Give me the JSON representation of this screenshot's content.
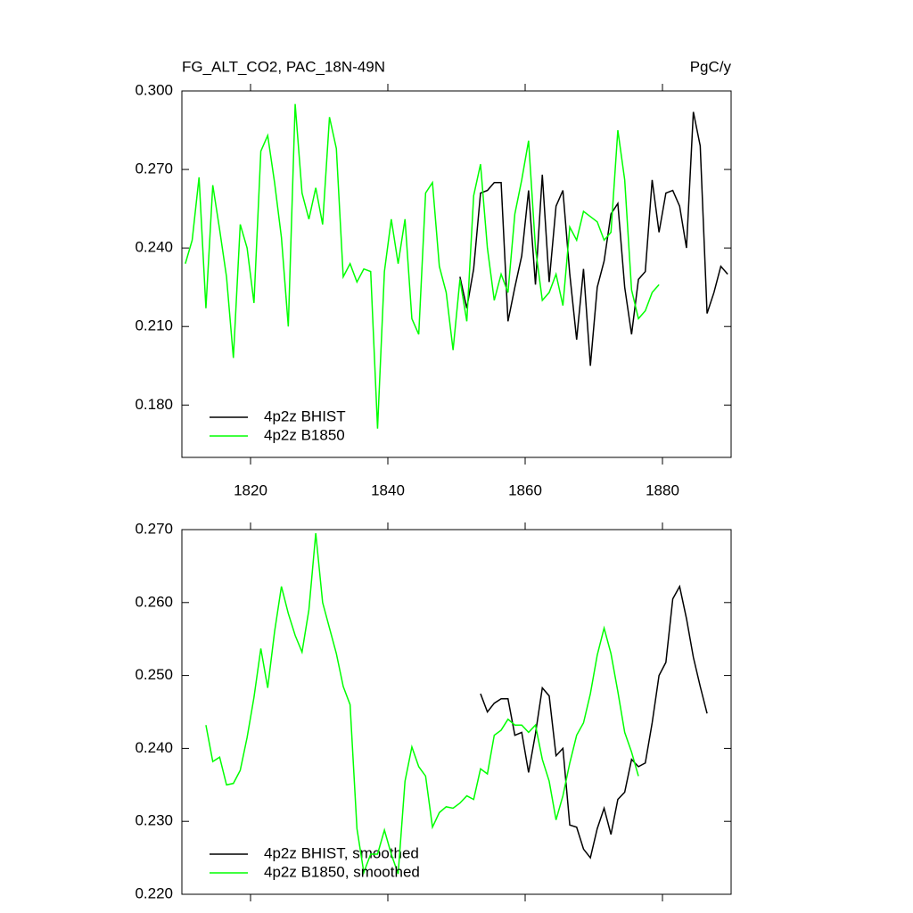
{
  "chart_data": [
    {
      "type": "line",
      "title": "FG_ALT_CO2, PAC_18N-49N",
      "units": "PgC/y",
      "x": [
        1810.5,
        1811.5,
        1812.5,
        1813.5,
        1814.5,
        1815.5,
        1816.5,
        1817.5,
        1818.5,
        1819.5,
        1820.5,
        1821.5,
        1822.5,
        1823.5,
        1824.5,
        1825.5,
        1826.5,
        1827.5,
        1828.5,
        1829.5,
        1830.5,
        1831.5,
        1832.5,
        1833.5,
        1834.5,
        1835.5,
        1836.5,
        1837.5,
        1838.5,
        1839.5,
        1840.5,
        1841.5,
        1842.5,
        1843.5,
        1844.5,
        1845.5,
        1846.5,
        1847.5,
        1848.5,
        1849.5,
        1850.5,
        1851.5,
        1852.5,
        1853.5,
        1854.5,
        1855.5,
        1856.5,
        1857.5,
        1858.5,
        1859.5,
        1860.5,
        1861.5,
        1862.5,
        1863.5,
        1864.5,
        1865.5,
        1866.5,
        1867.5,
        1868.5,
        1869.5,
        1870.5,
        1871.5,
        1872.5,
        1873.5,
        1874.5,
        1875.5,
        1876.5,
        1877.5,
        1878.5,
        1879.5,
        1880.5,
        1881.5,
        1882.5,
        1883.5,
        1884.5,
        1885.5,
        1886.5,
        1887.5,
        1888.5,
        1889.5
      ],
      "series": [
        {
          "name": "4p2z BHIST",
          "color": "#000000",
          "values": [
            null,
            null,
            null,
            null,
            null,
            null,
            null,
            null,
            null,
            null,
            null,
            null,
            null,
            null,
            null,
            null,
            null,
            null,
            null,
            null,
            null,
            null,
            null,
            null,
            null,
            null,
            null,
            null,
            null,
            null,
            null,
            null,
            null,
            null,
            null,
            null,
            null,
            null,
            null,
            null,
            0.229,
            0.217,
            0.232,
            0.261,
            0.262,
            0.265,
            0.265,
            0.212,
            0.225,
            0.237,
            0.262,
            0.226,
            0.268,
            0.227,
            0.256,
            0.262,
            0.23,
            0.205,
            0.232,
            0.195,
            0.225,
            0.235,
            0.253,
            0.257,
            0.225,
            0.207,
            0.228,
            0.231,
            0.266,
            0.246,
            0.261,
            0.262,
            0.256,
            0.24,
            0.292,
            0.279,
            0.215,
            0.223,
            0.233,
            0.23
          ]
        },
        {
          "name": "4p2z B1850",
          "color": "#00ff00",
          "values": [
            0.234,
            0.243,
            0.267,
            0.217,
            0.264,
            0.247,
            0.229,
            0.198,
            0.249,
            0.24,
            0.219,
            0.277,
            0.283,
            0.265,
            0.244,
            0.21,
            0.295,
            0.261,
            0.251,
            0.263,
            0.249,
            0.29,
            0.278,
            0.229,
            0.234,
            0.227,
            0.232,
            0.231,
            0.171,
            0.231,
            0.251,
            0.234,
            0.251,
            0.213,
            0.207,
            0.261,
            0.265,
            0.233,
            0.223,
            0.201,
            0.228,
            0.212,
            0.26,
            0.272,
            0.24,
            0.22,
            0.23,
            0.223,
            0.253,
            0.266,
            0.281,
            0.24,
            0.22,
            0.223,
            0.23,
            0.218,
            0.248,
            0.243,
            0.254,
            0.252,
            0.25,
            0.243,
            0.246,
            0.285,
            0.266,
            0.224,
            0.213,
            0.216,
            0.223,
            0.226,
            null,
            null,
            null,
            null,
            null,
            null,
            null,
            null,
            null,
            null
          ]
        }
      ],
      "xlim": [
        1810,
        1890
      ],
      "xticks": [
        1820,
        1840,
        1860,
        1880
      ],
      "ylim": [
        0.16,
        0.3
      ],
      "yticks": [
        {
          "value": 0.18,
          "label": "0.180"
        },
        {
          "value": 0.21,
          "label": "0.210"
        },
        {
          "value": 0.24,
          "label": "0.240"
        },
        {
          "value": 0.27,
          "label": "0.270"
        },
        {
          "value": 0.3,
          "label": "0.300"
        }
      ],
      "legend": "lower left"
    },
    {
      "type": "line",
      "x": [
        1813.5,
        1814.5,
        1815.5,
        1816.5,
        1817.5,
        1818.5,
        1819.5,
        1820.5,
        1821.5,
        1822.5,
        1823.5,
        1824.5,
        1825.5,
        1826.5,
        1827.5,
        1828.5,
        1829.5,
        1830.5,
        1831.5,
        1832.5,
        1833.5,
        1834.5,
        1835.5,
        1836.5,
        1837.5,
        1838.5,
        1839.5,
        1840.5,
        1841.5,
        1842.5,
        1843.5,
        1844.5,
        1845.5,
        1846.5,
        1847.5,
        1848.5,
        1849.5,
        1850.5,
        1851.5,
        1852.5,
        1853.5,
        1854.5,
        1855.5,
        1856.5,
        1857.5,
        1858.5,
        1859.5,
        1860.5,
        1861.5,
        1862.5,
        1863.5,
        1864.5,
        1865.5,
        1866.5,
        1867.5,
        1868.5,
        1869.5,
        1870.5,
        1871.5,
        1872.5,
        1873.5,
        1874.5,
        1875.5,
        1876.5,
        1877.5,
        1878.5,
        1879.5,
        1880.5,
        1881.5,
        1882.5,
        1883.5,
        1884.5,
        1885.5,
        1886.5
      ],
      "series": [
        {
          "name": "4p2z BHIST, smoothed",
          "color": "#000000",
          "values": [
            null,
            null,
            null,
            null,
            null,
            null,
            null,
            null,
            null,
            null,
            null,
            null,
            null,
            null,
            null,
            null,
            null,
            null,
            null,
            null,
            null,
            null,
            null,
            null,
            null,
            null,
            null,
            null,
            null,
            null,
            null,
            null,
            null,
            null,
            null,
            null,
            null,
            null,
            null,
            null,
            0.2475,
            0.245,
            0.2462,
            0.2468,
            0.2468,
            0.2418,
            0.2422,
            0.2367,
            0.242,
            0.2483,
            0.2472,
            0.239,
            0.24,
            0.2295,
            0.2292,
            0.2262,
            0.225,
            0.229,
            0.2318,
            0.2282,
            0.233,
            0.234,
            0.2385,
            0.2375,
            0.238,
            0.2435,
            0.25,
            0.2518,
            0.2605,
            0.2622,
            0.2578,
            0.2525,
            0.2485,
            0.2448
          ]
        },
        {
          "name": "4p2z B1850, smoothed",
          "color": "#00ff00",
          "values": [
            0.2432,
            0.2382,
            0.2388,
            0.235,
            0.2352,
            0.237,
            0.2415,
            0.247,
            0.2537,
            0.2483,
            0.256,
            0.2622,
            0.2585,
            0.2555,
            0.2532,
            0.259,
            0.2695,
            0.26,
            0.2565,
            0.253,
            0.2485,
            0.246,
            0.229,
            0.223,
            0.2255,
            0.2255,
            0.2288,
            0.2255,
            0.2228,
            0.2355,
            0.2402,
            0.2375,
            0.2362,
            0.2292,
            0.2312,
            0.232,
            0.2318,
            0.2325,
            0.2335,
            0.233,
            0.2372,
            0.2365,
            0.2418,
            0.2425,
            0.244,
            0.2432,
            0.2432,
            0.2422,
            0.2432,
            0.2385,
            0.2355,
            0.2302,
            0.2335,
            0.238,
            0.2418,
            0.2435,
            0.2475,
            0.2528,
            0.2565,
            0.253,
            0.2478,
            0.2422,
            0.2395,
            0.2362,
            null,
            null,
            null,
            null,
            null,
            null,
            null,
            null,
            null,
            null
          ]
        }
      ],
      "xlim": [
        1810,
        1890
      ],
      "xticks": [
        1820,
        1840,
        1860,
        1880
      ],
      "ylim": [
        0.22,
        0.27
      ],
      "yticks": [
        {
          "value": 0.22,
          "label": "0.220"
        },
        {
          "value": 0.23,
          "label": "0.230"
        },
        {
          "value": 0.24,
          "label": "0.240"
        },
        {
          "value": 0.25,
          "label": "0.250"
        },
        {
          "value": 0.26,
          "label": "0.260"
        },
        {
          "value": 0.27,
          "label": "0.270"
        }
      ],
      "legend": "lower left"
    }
  ]
}
